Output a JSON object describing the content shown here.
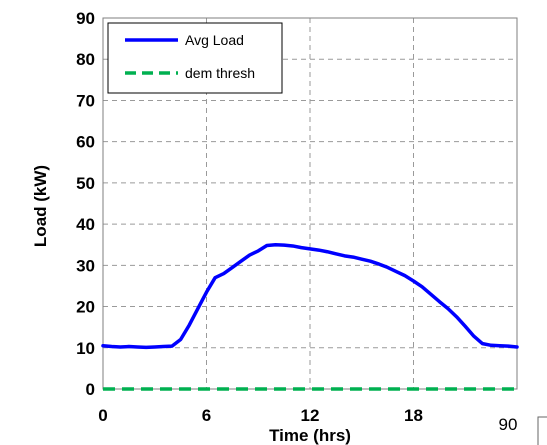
{
  "chart_data": {
    "type": "line",
    "title": "",
    "xlabel": "Time (hrs)",
    "ylabel": "Load (kW)",
    "xlim": [
      0,
      24
    ],
    "ylim": [
      0,
      90
    ],
    "x_ticks": [
      "0",
      "6",
      "12",
      "18"
    ],
    "y_ticks": [
      "0",
      "10",
      "20",
      "30",
      "40",
      "50",
      "60",
      "70",
      "80",
      "90"
    ],
    "grid": true,
    "legend_position": "top-left",
    "series": [
      {
        "name": "Avg Load",
        "color": "#0000ff",
        "style": "solid",
        "x": [
          0,
          0.5,
          1,
          1.5,
          2,
          2.5,
          3,
          3.5,
          4,
          4.5,
          5,
          5.5,
          6,
          6.5,
          7,
          7.5,
          8,
          8.5,
          9,
          9.5,
          10,
          10.5,
          11,
          11.5,
          12,
          12.5,
          13,
          13.5,
          14,
          14.5,
          15,
          15.5,
          16,
          16.5,
          17,
          17.5,
          18,
          18.5,
          19,
          19.5,
          20,
          20.5,
          21,
          21.5,
          22,
          22.5,
          23,
          23.5,
          24
        ],
        "values": [
          10.5,
          10.3,
          10.2,
          10.3,
          10.2,
          10.1,
          10.2,
          10.3,
          10.4,
          12,
          15.5,
          19.5,
          23.5,
          27,
          28,
          29.5,
          31,
          32.5,
          33.5,
          34.8,
          35,
          34.9,
          34.7,
          34.3,
          34,
          33.7,
          33.3,
          32.8,
          32.3,
          32,
          31.5,
          31,
          30.3,
          29.5,
          28.5,
          27.5,
          26.2,
          24.8,
          23,
          21.2,
          19.5,
          17.5,
          15.2,
          12.8,
          11,
          10.6,
          10.5,
          10.4,
          10.2
        ]
      },
      {
        "name": "dem thresh",
        "color": "#00b050",
        "style": "dashed",
        "x": [
          0,
          24
        ],
        "values": [
          0,
          0
        ]
      }
    ]
  },
  "stray_label": "90"
}
